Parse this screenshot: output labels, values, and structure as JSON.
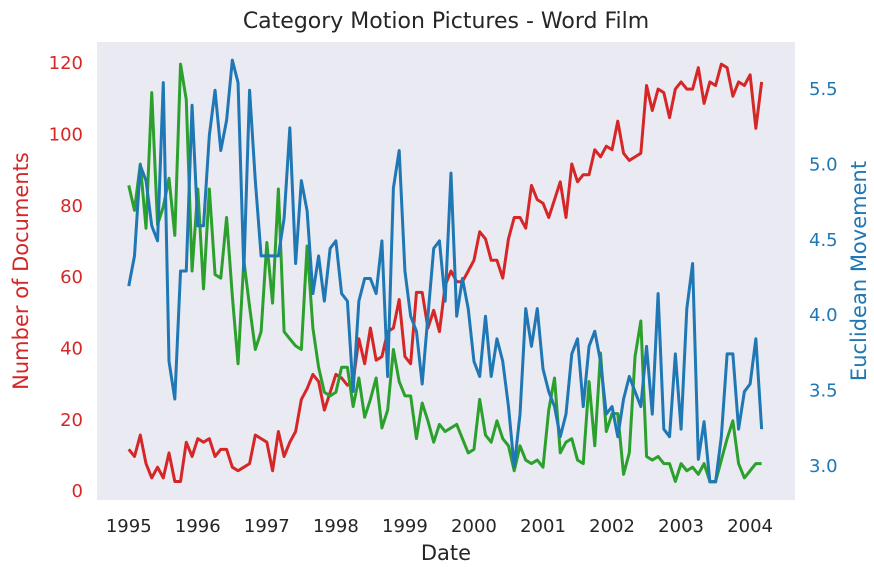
{
  "chart_data": {
    "type": "line",
    "title": "Category Motion Pictures - Word Film",
    "xlabel": "Date",
    "ylabel": "Number of Documents",
    "y2label": "Euclidean Movement",
    "x": [
      1995,
      1995.083,
      1995.167,
      1995.25,
      1995.333,
      1995.417,
      1995.5,
      1995.583,
      1995.667,
      1995.75,
      1995.833,
      1995.917,
      1996,
      1996.083,
      1996.167,
      1996.25,
      1996.333,
      1996.417,
      1996.5,
      1996.583,
      1996.667,
      1996.75,
      1996.833,
      1996.917,
      1997,
      1997.083,
      1997.167,
      1997.25,
      1997.333,
      1997.417,
      1997.5,
      1997.583,
      1997.667,
      1997.75,
      1997.833,
      1997.917,
      1998,
      1998.083,
      1998.167,
      1998.25,
      1998.333,
      1998.417,
      1998.5,
      1998.583,
      1998.667,
      1998.75,
      1998.833,
      1998.917,
      1999,
      1999.083,
      1999.167,
      1999.25,
      1999.333,
      1999.417,
      1999.5,
      1999.583,
      1999.667,
      1999.75,
      1999.833,
      1999.917,
      2000,
      2000.083,
      2000.167,
      2000.25,
      2000.333,
      2000.417,
      2000.5,
      2000.583,
      2000.667,
      2000.75,
      2000.833,
      2000.917,
      2001,
      2001.083,
      2001.167,
      2001.25,
      2001.333,
      2001.417,
      2001.5,
      2001.583,
      2001.667,
      2001.75,
      2001.833,
      2001.917,
      2002,
      2002.083,
      2002.167,
      2002.25,
      2002.333,
      2002.417,
      2002.5,
      2002.583,
      2002.667,
      2002.75,
      2002.833,
      2002.917,
      2003,
      2003.083,
      2003.167,
      2003.25,
      2003.333,
      2003.417,
      2003.5,
      2003.583,
      2003.667,
      2003.75,
      2003.833,
      2003.917,
      2004,
      2004.083,
      2004.167
    ],
    "series": [
      {
        "color": "#d62728",
        "axis": "y",
        "values": [
          12,
          10,
          16,
          8,
          4,
          7,
          4,
          11,
          3,
          3,
          14,
          10,
          15,
          14,
          15,
          10,
          12,
          12,
          7,
          6,
          7,
          8,
          16,
          15,
          14,
          6,
          17,
          10,
          14,
          17,
          26,
          29,
          33,
          31,
          23,
          28,
          33,
          32,
          30,
          31,
          43,
          36,
          46,
          37,
          38,
          45,
          46,
          54,
          38,
          36,
          56,
          56,
          46,
          51,
          45,
          58,
          62,
          59,
          59,
          62,
          65,
          73,
          71,
          65,
          65,
          60,
          71,
          77,
          77,
          74,
          86,
          82,
          81,
          77,
          82,
          87,
          77,
          92,
          87,
          89,
          89,
          96,
          94,
          97,
          96,
          104,
          95,
          93,
          94,
          95,
          114,
          107,
          113,
          112,
          105,
          113,
          115,
          113,
          113,
          119,
          109,
          115,
          114,
          120,
          119,
          111,
          115,
          114,
          117,
          102,
          115
        ]
      },
      {
        "color": "#2ca02c",
        "axis": "y",
        "values": [
          86,
          79,
          92,
          74,
          112,
          75,
          80,
          88,
          72,
          120,
          110,
          62,
          85,
          57,
          85,
          61,
          60,
          77,
          55,
          36,
          65,
          52,
          40,
          45,
          70,
          53,
          85,
          45,
          43,
          41,
          40,
          69,
          46,
          35,
          28,
          27,
          28,
          35,
          35,
          24,
          32,
          21,
          26,
          32,
          18,
          23,
          40,
          31,
          27,
          27,
          15,
          25,
          20,
          14,
          19,
          17,
          18,
          19,
          15,
          11,
          12,
          26,
          16,
          14,
          20,
          15,
          13,
          6,
          13,
          9,
          8,
          9,
          7,
          23,
          32,
          11,
          14,
          15,
          9,
          8,
          31,
          13,
          39,
          17,
          22,
          22,
          5,
          11,
          38,
          48,
          10,
          9,
          10,
          8,
          8,
          3,
          8,
          6,
          7,
          5,
          8,
          3,
          3,
          9,
          15,
          20,
          8,
          4,
          6,
          8,
          8
        ]
      },
      {
        "color": "#1f77b4",
        "axis": "y2",
        "values": [
          4.2,
          4.4,
          5.0,
          4.9,
          4.6,
          4.5,
          5.55,
          3.7,
          3.45,
          4.3,
          4.3,
          5.4,
          4.6,
          4.6,
          5.2,
          5.5,
          5.1,
          5.3,
          5.7,
          5.55,
          4.3,
          5.5,
          4.9,
          4.4,
          4.4,
          4.4,
          4.4,
          4.65,
          5.25,
          4.35,
          4.9,
          4.7,
          4.15,
          4.4,
          4.1,
          4.45,
          4.5,
          4.15,
          4.1,
          3.5,
          4.1,
          4.25,
          4.25,
          4.15,
          4.5,
          3.6,
          4.85,
          5.1,
          4.3,
          4.0,
          3.9,
          3.55,
          4.0,
          4.45,
          4.5,
          4.1,
          4.95,
          4.0,
          4.25,
          4.05,
          3.7,
          3.6,
          4.0,
          3.6,
          3.85,
          3.7,
          3.4,
          3.0,
          3.35,
          4.05,
          3.8,
          4.05,
          3.65,
          3.5,
          3.4,
          3.2,
          3.35,
          3.75,
          3.85,
          3.4,
          3.8,
          3.9,
          3.7,
          3.35,
          3.4,
          3.2,
          3.45,
          3.6,
          3.5,
          3.4,
          3.8,
          3.35,
          4.15,
          3.25,
          3.2,
          3.75,
          3.25,
          4.05,
          4.35,
          3.05,
          3.3,
          2.9,
          2.9,
          3.2,
          3.75,
          3.75,
          3.25,
          3.5,
          3.55,
          3.85,
          3.25
        ]
      }
    ],
    "xlim": [
      1994.54,
      2004.65
    ],
    "xticks": [
      1995,
      1996,
      1997,
      1998,
      1999,
      2000,
      2001,
      2002,
      2003,
      2004
    ],
    "ylim": [
      -2.2,
      126.2
    ],
    "yticks": [
      0,
      20,
      40,
      60,
      80,
      100,
      120
    ],
    "y2lim": [
      2.78,
      5.82
    ],
    "y2ticks": [
      {
        "value": 3,
        "label": "3.0"
      },
      3.5,
      {
        "value": 4,
        "label": "4.0"
      },
      4.5,
      {
        "value": 5,
        "label": "5.0"
      },
      5.5
    ],
    "grid": false,
    "background": "#eaeaf2"
  }
}
